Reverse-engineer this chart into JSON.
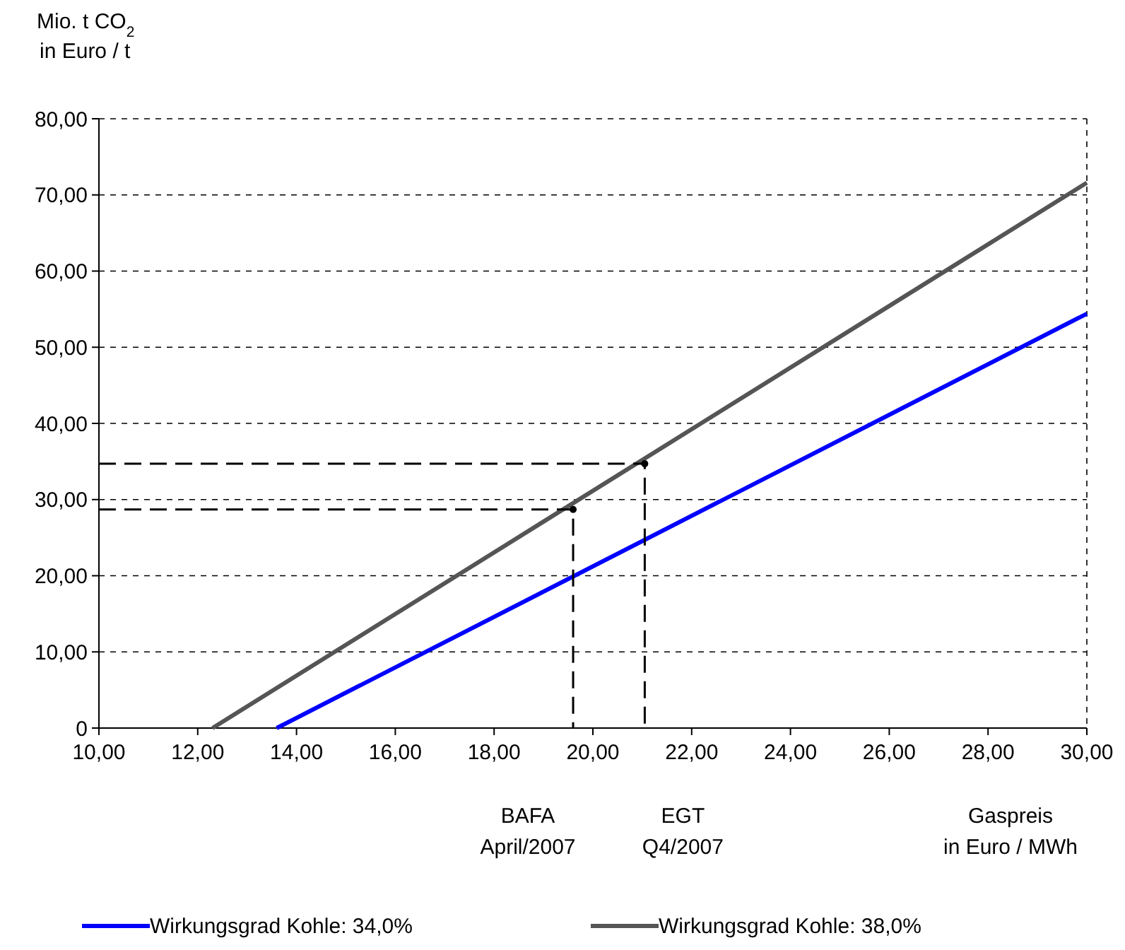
{
  "chart_data": {
    "type": "line",
    "ylabel": "Mio. t CO$_{2}$\nin Euro / t",
    "xlabel": "Gaspreis\nin Euro / MWh",
    "xlim": [
      10,
      30
    ],
    "xticks": [
      {
        "value": 10,
        "label": "10,00"
      },
      {
        "value": 12,
        "label": "12,00"
      },
      {
        "value": 14,
        "label": "14,00"
      },
      {
        "value": 16,
        "label": "16,00"
      },
      {
        "value": 18,
        "label": "18,00"
      },
      {
        "value": 20,
        "label": "20,00"
      },
      {
        "value": 22,
        "label": "22,00"
      },
      {
        "value": 24,
        "label": "24,00"
      },
      {
        "value": 26,
        "label": "26,00"
      },
      {
        "value": 28,
        "label": "28,00"
      },
      {
        "value": 30,
        "label": "30,00"
      }
    ],
    "ylim": [
      0,
      80
    ],
    "yticks": [
      0,
      {
        "value": 10,
        "label": "10,00"
      },
      {
        "value": 20,
        "label": "20,00"
      },
      {
        "value": 30,
        "label": "30,00"
      },
      {
        "value": 40,
        "label": "40,00"
      },
      {
        "value": 50,
        "label": "50,00"
      },
      {
        "value": 60,
        "label": "60,00"
      },
      {
        "value": 70,
        "label": "70,00"
      },
      {
        "value": 80,
        "label": "80,00"
      }
    ],
    "grid": "y",
    "legend": "bottom",
    "line_style": "solid",
    "series": [
      {
        "name": "Wirkungsgrad Kohle: 34,0%",
        "color": "#0000ff",
        "x": [
          13.6,
          30
        ],
        "values": [
          0,
          54.4
        ]
      },
      {
        "name": "Wirkungsgrad Kohle: 38,0%",
        "color": "#555555",
        "x": [
          12.3,
          30
        ],
        "values": [
          0,
          71.6
        ]
      },
      {
        "type": "line",
        "color": "#000000",
        "line_style": "dashed",
        "x": [
          10,
          19.6,
          19.6
        ],
        "values": [
          28.7,
          28.7,
          0
        ]
      },
      {
        "type": "line",
        "color": "#000000",
        "line_style": "dashed",
        "x": [
          10,
          21.05,
          21.05
        ],
        "values": [
          34.7,
          34.7,
          0
        ]
      },
      {
        "type": "scatter",
        "marker": "circle",
        "color": "#000000",
        "x": [
          19.6,
          21.05
        ],
        "values": [
          28.7,
          34.7
        ]
      }
    ],
    "annotations": [
      "BAFA\nApril/2007",
      "EGT\nQ4/2007"
    ]
  }
}
